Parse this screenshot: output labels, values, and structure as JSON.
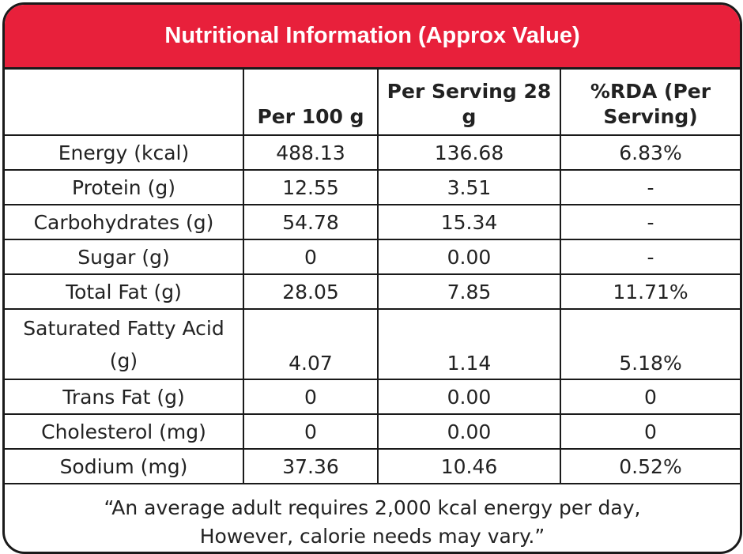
{
  "title": "Nutritional Information (Approx Value)",
  "columns": {
    "nutrient": "",
    "per_100g": "Per 100 g",
    "per_serving": "Per Serving 28 g",
    "rda": "%RDA (Per Serving)"
  },
  "rows": [
    {
      "nutrient": "Energy (kcal)",
      "per_100g": "488.13",
      "per_serving": "136.68",
      "rda": "6.83%"
    },
    {
      "nutrient": "Protein (g)",
      "per_100g": "12.55",
      "per_serving": "3.51",
      "rda": "-"
    },
    {
      "nutrient": "Carbohydrates (g)",
      "per_100g": "54.78",
      "per_serving": "15.34",
      "rda": "-"
    },
    {
      "nutrient": "Sugar (g)",
      "per_100g": "0",
      "per_serving": "0.00",
      "rda": "-"
    },
    {
      "nutrient": "Total Fat (g)",
      "per_100g": "28.05",
      "per_serving": "7.85",
      "rda": "11.71%"
    },
    {
      "nutrient": "Saturated Fatty Acid (g)",
      "per_100g": "4.07",
      "per_serving": "1.14",
      "rda": "5.18%"
    },
    {
      "nutrient": "Trans Fat (g)",
      "per_100g": "0",
      "per_serving": "0.00",
      "rda": "0"
    },
    {
      "nutrient": "Cholesterol (mg)",
      "per_100g": "0",
      "per_serving": "0.00",
      "rda": "0"
    },
    {
      "nutrient": "Sodium (mg)",
      "per_100g": "37.36",
      "per_serving": "10.46",
      "rda": "0.52%"
    }
  ],
  "footer": {
    "line1": "“An average adult requires 2,000 kcal energy per day,",
    "line2": "However, calorie needs may vary.”"
  },
  "colors": {
    "header_bg": "#e8203b",
    "border": "#1a1a1a"
  }
}
